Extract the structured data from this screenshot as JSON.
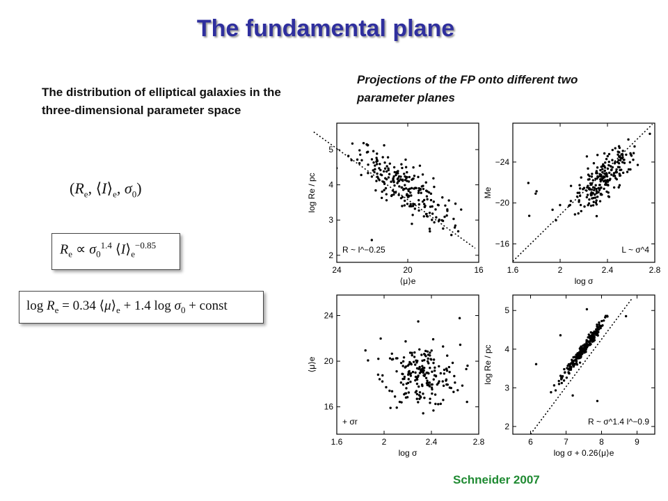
{
  "title": "The fundamental plane",
  "left_text": "The distribution of elliptical galaxies in the three-dimensional parameter space",
  "right_text": "Projections of the FP onto different two parameter planes",
  "equations": {
    "param_space": "(Re, ⟨I⟩e, σ0)",
    "scaling": "Re ∝ σ0^1.4 ⟨I⟩e^−0.85",
    "log_relation": "log Re = 0.34 ⟨μ⟩e + 1.4 log σ0 + const"
  },
  "credit": "Schneider 2007",
  "chart_data": [
    {
      "type": "scatter",
      "panel": "top-left",
      "xlabel": "⟨μ⟩e",
      "ylabel": "log Re / pc",
      "xlim": [
        24,
        16
      ],
      "ylim": [
        1.8,
        5.75
      ],
      "xticks": [
        "24",
        "20",
        "16"
      ],
      "yticks": [
        "2",
        "3",
        "4",
        "5"
      ],
      "annotation": "R ~ I^−0.25",
      "fit_line": [
        [
          25.3,
          5.5
        ],
        [
          16.2,
          2.2
        ]
      ],
      "cloud": {
        "x_center": 20.2,
        "y_center": 3.95,
        "x_spread": 1.4,
        "y_spread": 0.35,
        "slope": 0.32,
        "n": 220
      }
    },
    {
      "type": "scatter",
      "panel": "top-right",
      "xlabel": "log σ",
      "ylabel": "Me",
      "xlim": [
        1.6,
        2.8
      ],
      "ylim": [
        -14.2,
        -27.8
      ],
      "xticks": [
        "1.6",
        "2",
        "2.4",
        "2.8"
      ],
      "yticks": [
        "−24",
        "−20",
        "−16"
      ],
      "annotation": "L ~ σ^4",
      "fit_line": [
        [
          1.6,
          -14.3
        ],
        [
          2.78,
          -27.7
        ]
      ],
      "cloud": {
        "x_center": 2.37,
        "y_center": -22.6,
        "x_spread": 0.14,
        "y_spread": 1.0,
        "slope": -10.0,
        "n": 220
      }
    },
    {
      "type": "scatter",
      "panel": "bottom-left",
      "xlabel": "log σ",
      "ylabel": "⟨μ⟩e",
      "xlim": [
        1.6,
        2.8
      ],
      "ylim": [
        13.6,
        25.8
      ],
      "xticks": [
        "1.6",
        "2",
        "2.4",
        "2.8"
      ],
      "yticks": [
        "16",
        "20",
        "24"
      ],
      "annotation": "+ σr",
      "cloud": {
        "x_center": 2.32,
        "y_center": 18.7,
        "x_spread": 0.16,
        "y_spread": 1.35,
        "slope": 0,
        "n": 200
      }
    },
    {
      "type": "scatter",
      "panel": "bottom-right",
      "xlabel": "log σ + 0.26⟨μ⟩e",
      "ylabel": "log Re / pc",
      "xlim": [
        5.5,
        9.5
      ],
      "ylim": [
        1.8,
        5.4
      ],
      "xticks": [
        "6",
        "7",
        "8",
        "9"
      ],
      "yticks": [
        "2",
        "3",
        "4",
        "5"
      ],
      "annotation": "R ~ σ^1.4 I^−0.9",
      "fit_line": [
        [
          6.0,
          1.8
        ],
        [
          8.85,
          5.3
        ]
      ],
      "cloud": {
        "x_center": 7.45,
        "y_center": 3.95,
        "x_spread": 0.3,
        "y_spread": 0.08,
        "slope": 1.24,
        "n": 220
      }
    }
  ]
}
